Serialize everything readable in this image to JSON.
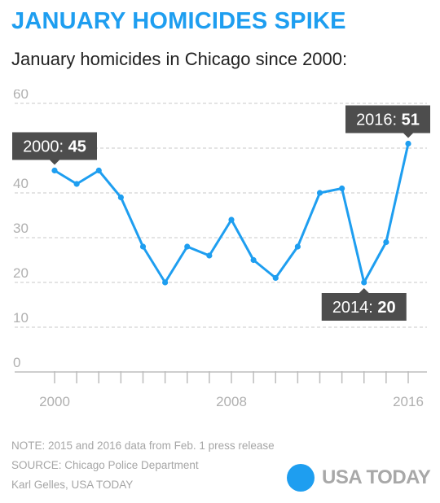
{
  "header": {
    "title": "JANUARY HOMICIDES SPIKE",
    "subtitle": "January homicides in Chicago since 2000:"
  },
  "footer": {
    "note": "NOTE:  2015 and 2016 data from Feb. 1 press release",
    "source": "SOURCE:  Chicago Police Department",
    "credit": "Karl Gelles, USA TODAY",
    "brand": "USA TODAY"
  },
  "colors": {
    "accent": "#1e9ef0",
    "callout": "#4d4d4d",
    "grid": "#c8c8c8",
    "tick_text": "#b0b0b0",
    "footer_text": "#a6a6a6"
  },
  "chart_data": {
    "type": "line",
    "x": [
      2000,
      2001,
      2002,
      2003,
      2004,
      2005,
      2006,
      2007,
      2008,
      2009,
      2010,
      2011,
      2012,
      2013,
      2014,
      2015,
      2016
    ],
    "series": [
      {
        "values": [
          45,
          42,
          45,
          39,
          28,
          20,
          28,
          26,
          34,
          25,
          21,
          28,
          40,
          41,
          20,
          29,
          51
        ]
      }
    ],
    "xlim": [
      2000,
      2016
    ],
    "ylim": [
      0,
      60
    ],
    "yticks": [
      0,
      10,
      20,
      30,
      40,
      50,
      60
    ],
    "xticks": [
      2000,
      2008,
      2016
    ],
    "xlabel": "",
    "ylabel": "",
    "grid": true,
    "annotations": [
      {
        "x": 2000,
        "label": "2000: ",
        "value": "45",
        "placement": "above"
      },
      {
        "x": 2014,
        "label": "2014: ",
        "value": "20",
        "placement": "below"
      },
      {
        "x": 2016,
        "label": "2016: ",
        "value": "51",
        "placement": "above"
      }
    ]
  }
}
